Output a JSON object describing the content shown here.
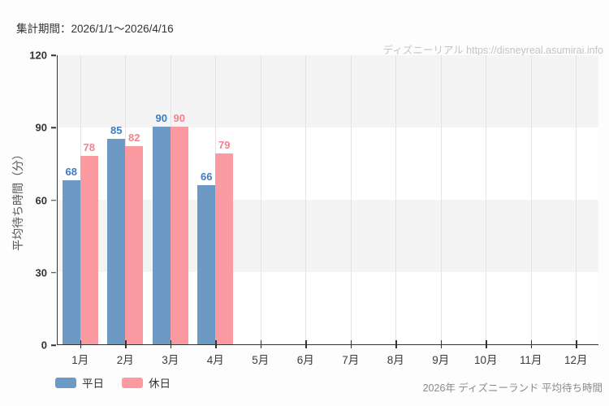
{
  "header": {
    "report_period": "集計期間：2026/1/1～2026/4/16",
    "watermark": "ディズニーリアル https://disneyreal.asumirai.info"
  },
  "chart_data": {
    "type": "bar",
    "title": "2026年 ディズニーランド 平均待ち時間",
    "ylabel": "平均待ち時間（分）",
    "xlabel": "",
    "categories": [
      "1月",
      "2月",
      "3月",
      "4月",
      "5月",
      "6月",
      "7月",
      "8月",
      "9月",
      "10月",
      "11月",
      "12月"
    ],
    "series": [
      {
        "key": "weekday",
        "name": "平日",
        "color": "#6d99c5",
        "label_color": "#3b7dc0",
        "values": [
          68,
          85,
          90,
          66,
          null,
          null,
          null,
          null,
          null,
          null,
          null,
          null
        ]
      },
      {
        "key": "holiday",
        "name": "休日",
        "color": "#fb9aa0",
        "label_color": "#f8808b",
        "values": [
          78,
          82,
          90,
          79,
          null,
          null,
          null,
          null,
          null,
          null,
          null,
          null
        ]
      }
    ],
    "yticks": [
      0,
      30,
      60,
      90,
      120
    ],
    "ylim": [
      0,
      120
    ],
    "grid": "alternating horizontal bands every 30, vertical gridlines at category centers",
    "legend_position": "bottom-left"
  },
  "footer": {
    "caption": "2026年 ディズニーランド 平均待ち時間"
  },
  "colors": {
    "band_gray": "#f4f4f5",
    "axis": "#333333",
    "gridline": "#e3e3e5",
    "watermark_text": "#c3c3c6"
  }
}
